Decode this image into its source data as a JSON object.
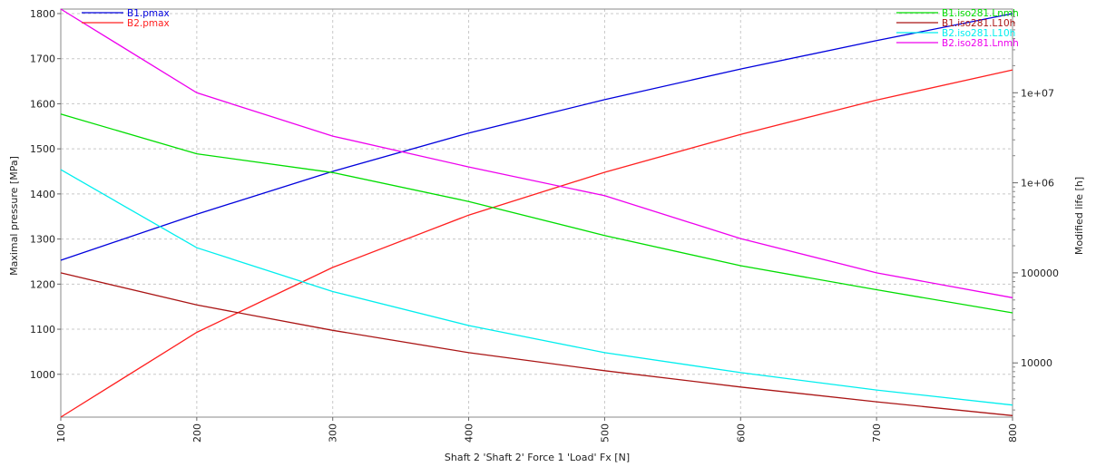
{
  "chart_data": {
    "type": "line",
    "title": "",
    "xlabel": "Shaft 2 'Shaft 2' Force 1 'Load' Fx [N]",
    "ylabel": "Maximal pressure [MPa]",
    "y2label": "Modified life [h]",
    "xlim": [
      100,
      800
    ],
    "ylim": [
      905,
      1810
    ],
    "y2lim_log": [
      2500,
      85000000
    ],
    "y2scale": "log",
    "grid": true,
    "x": [
      100,
      200,
      300,
      400,
      500,
      600,
      700,
      800
    ],
    "x_ticks": [
      "100",
      "200",
      "300",
      "400",
      "500",
      "600",
      "700",
      "800"
    ],
    "y_ticks": [
      "1000",
      "1100",
      "1200",
      "1300",
      "1400",
      "1500",
      "1600",
      "1700",
      "1800"
    ],
    "y2_ticks": [
      "10000",
      "100000",
      "1e+06",
      "1e+07"
    ],
    "legend_left_position": "top-left",
    "legend_right_position": "top-right",
    "series": [
      {
        "name": "B1.pmax",
        "axis": "left",
        "color": "#0000dd",
        "values": [
          1253,
          1355,
          1450,
          1535,
          1609,
          1677,
          1740,
          1800
        ]
      },
      {
        "name": "B2.pmax",
        "axis": "left",
        "color": "#ff2020",
        "values": [
          905,
          1093,
          1237,
          1353,
          1448,
          1532,
          1608,
          1675
        ]
      },
      {
        "name": "B1.iso281.Lnmh",
        "axis": "right",
        "color": "#00dd00",
        "values": [
          5800000,
          2100000,
          1300000,
          620000,
          260000,
          120000,
          65000,
          36000
        ]
      },
      {
        "name": "B1.iso281.L10h",
        "axis": "right",
        "color": "#aa1515",
        "values": [
          100000,
          44000,
          23000,
          13000,
          8200,
          5400,
          3700,
          2600
        ]
      },
      {
        "name": "B2.iso281.L10h",
        "axis": "right",
        "color": "#00eeee",
        "values": [
          1400000,
          190000,
          62000,
          26000,
          13000,
          7800,
          5000,
          3400
        ]
      },
      {
        "name": "B2.iso281.Lnmh",
        "axis": "right",
        "color": "#ee00ee",
        "values": [
          85000000,
          10000000,
          3300000,
          1500000,
          720000,
          240000,
          100000,
          53000
        ]
      }
    ]
  }
}
